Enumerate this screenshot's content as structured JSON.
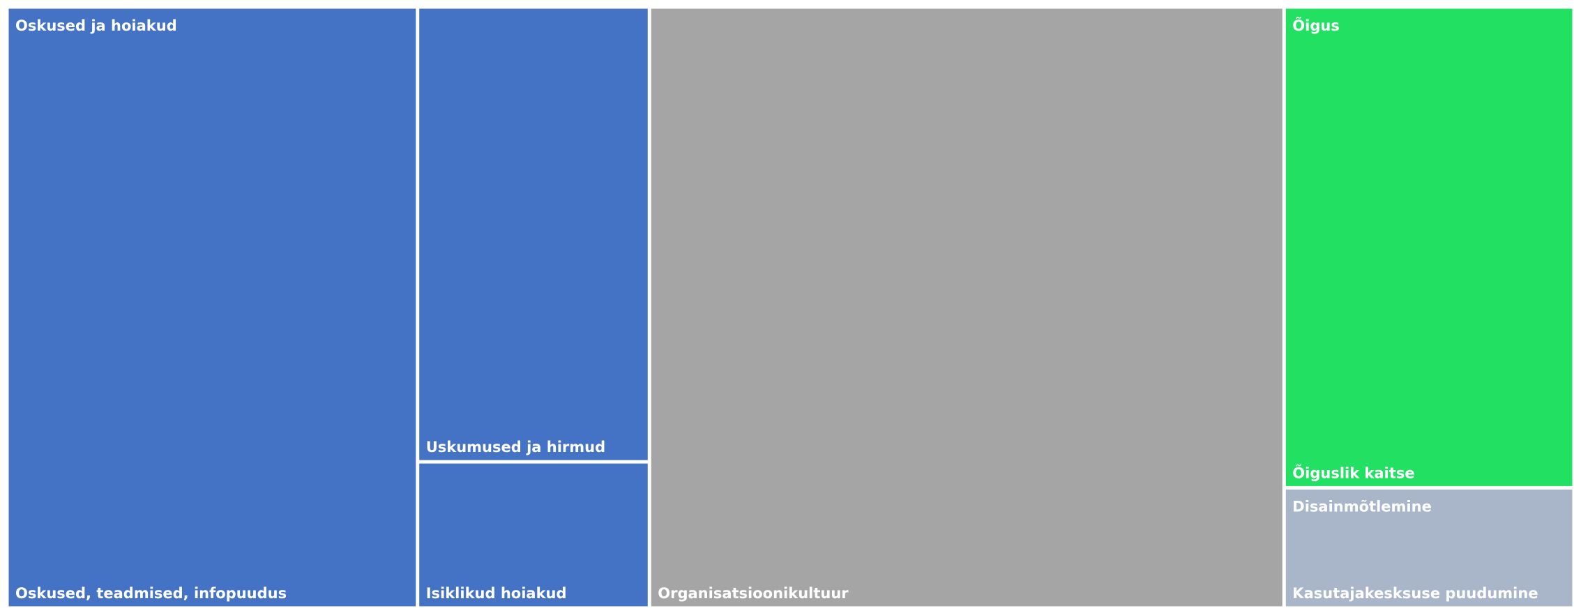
{
  "chart_data": {
    "type": "treemap",
    "groups": [
      {
        "name": "Oskused ja hoiakud",
        "color": "#4472c4",
        "children": [
          {
            "name": "Oskused, teadmised, infopuudus",
            "value": 26.2
          },
          {
            "name": "Uskumused ja hirmud",
            "value": 11.2
          },
          {
            "name": "Isiklikud hoiakud",
            "value": 3.6
          }
        ]
      },
      {
        "name": null,
        "color": "#a5a5a5",
        "children": [
          {
            "name": "Organisatsioonikultuur",
            "value": 40.5
          }
        ]
      },
      {
        "name": "Õigus",
        "color": "#22e062",
        "children": [
          {
            "name": "Õiguslik kaitse",
            "value": 14.8
          }
        ]
      },
      {
        "name": "Disainmõtlemine",
        "color": "#a9b6c9",
        "children": [
          {
            "name": "Kasutajakesksuse puudumine",
            "value": 3.7
          }
        ]
      }
    ]
  }
}
